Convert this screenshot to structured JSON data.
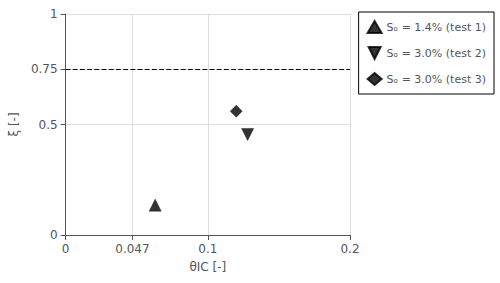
{
  "chart_data": {
    "type": "scatter",
    "title": "",
    "xlabel": "θIC [-]",
    "ylabel": "ξ [-]",
    "xlim": [
      0,
      0.2
    ],
    "ylim": [
      0,
      1
    ],
    "xticks": [
      0,
      0.047,
      0.1,
      0.2
    ],
    "yticks": [
      0,
      0.5,
      0.75,
      1
    ],
    "grid": true,
    "legend": "right",
    "series": [
      {
        "name": "Sₒ = 1.4% (test 1)",
        "color": "black",
        "marker": "triangle-up",
        "x": [
          0.063
        ],
        "values": [
          0.135
        ]
      },
      {
        "name": "Sₒ = 3.0% (test 2)",
        "color": "black",
        "marker": "triangle-down",
        "x": [
          0.128
        ],
        "values": [
          0.455
        ]
      },
      {
        "name": "Sₒ = 3.0% (test 3)",
        "color": "black",
        "marker": "diamond",
        "x": [
          0.12
        ],
        "values": [
          0.56
        ]
      }
    ],
    "annotations": [
      {
        "type": "hline",
        "y": 0.75,
        "line_style": "dashed",
        "color": "black"
      }
    ]
  }
}
